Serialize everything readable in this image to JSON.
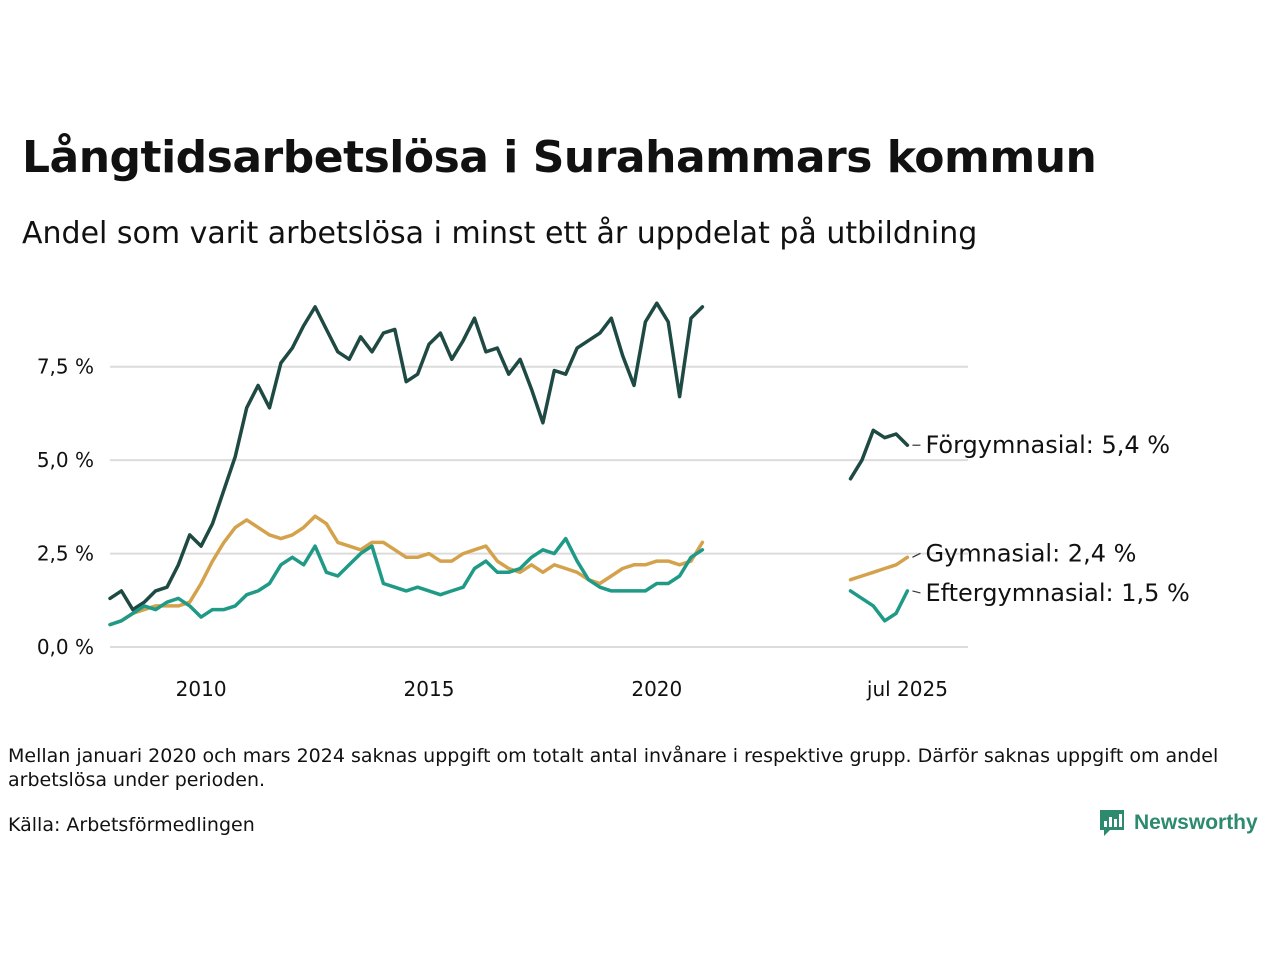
{
  "chart_data": {
    "type": "line",
    "title": "Långtidsarbetslösa i Surahammars kommun",
    "subtitle": "Andel som varit arbetslösa i minst ett år uppdelat på utbildning",
    "xlabel": "",
    "ylabel": "",
    "x_ticks": [
      {
        "x": 2010,
        "label": "2010"
      },
      {
        "x": 2015,
        "label": "2015"
      },
      {
        "x": 2020,
        "label": "2020"
      },
      {
        "x": 2025.5,
        "label": "jul 2025"
      }
    ],
    "y_ticks": [
      {
        "y": 0,
        "label": "0,0 %"
      },
      {
        "y": 2.5,
        "label": "2,5 %"
      },
      {
        "y": 5.0,
        "label": "5,0 %"
      },
      {
        "y": 7.5,
        "label": "7,5 %"
      }
    ],
    "xlim": [
      2008.0,
      2025.6
    ],
    "ylim": [
      0,
      9.5
    ],
    "grid": "horizontal",
    "legend": "direct labels at line ends, right",
    "series": [
      {
        "name": "Förgymnasial",
        "label": "Förgymnasial: 5,4 %",
        "color": "#1f4a43",
        "segments": [
          [
            [
              2008.0,
              1.3
            ],
            [
              2008.25,
              1.5
            ],
            [
              2008.5,
              1.0
            ],
            [
              2008.75,
              1.2
            ],
            [
              2009.0,
              1.5
            ],
            [
              2009.25,
              1.6
            ],
            [
              2009.5,
              2.2
            ],
            [
              2009.75,
              3.0
            ],
            [
              2010.0,
              2.7
            ],
            [
              2010.25,
              3.3
            ],
            [
              2010.5,
              4.2
            ],
            [
              2010.75,
              5.1
            ],
            [
              2011.0,
              6.4
            ],
            [
              2011.25,
              7.0
            ],
            [
              2011.5,
              6.4
            ],
            [
              2011.75,
              7.6
            ],
            [
              2012.0,
              8.0
            ],
            [
              2012.25,
              8.6
            ],
            [
              2012.5,
              9.1
            ],
            [
              2012.75,
              8.5
            ],
            [
              2013.0,
              7.9
            ],
            [
              2013.25,
              7.7
            ],
            [
              2013.5,
              8.3
            ],
            [
              2013.75,
              7.9
            ],
            [
              2014.0,
              8.4
            ],
            [
              2014.25,
              8.5
            ],
            [
              2014.5,
              7.1
            ],
            [
              2014.75,
              7.3
            ],
            [
              2015.0,
              8.1
            ],
            [
              2015.25,
              8.4
            ],
            [
              2015.5,
              7.7
            ],
            [
              2015.75,
              8.2
            ],
            [
              2016.0,
              8.8
            ],
            [
              2016.25,
              7.9
            ],
            [
              2016.5,
              8.0
            ],
            [
              2016.75,
              7.3
            ],
            [
              2017.0,
              7.7
            ],
            [
              2017.25,
              6.9
            ],
            [
              2017.5,
              6.0
            ],
            [
              2017.75,
              7.4
            ],
            [
              2018.0,
              7.3
            ],
            [
              2018.25,
              8.0
            ],
            [
              2018.5,
              8.2
            ],
            [
              2018.75,
              8.4
            ],
            [
              2019.0,
              8.8
            ],
            [
              2019.25,
              7.8
            ],
            [
              2019.5,
              7.0
            ],
            [
              2019.75,
              8.7
            ],
            [
              2020.0,
              9.2
            ],
            [
              2020.25,
              8.7
            ],
            [
              2020.5,
              6.7
            ],
            [
              2020.75,
              8.8
            ],
            [
              2021.0,
              9.1
            ]
          ],
          [
            [
              2024.25,
              4.5
            ],
            [
              2024.5,
              5.0
            ],
            [
              2024.75,
              5.8
            ],
            [
              2025.0,
              5.6
            ],
            [
              2025.25,
              5.7
            ],
            [
              2025.5,
              5.4
            ]
          ]
        ]
      },
      {
        "name": "Gymnasial",
        "label": "Gymnasial: 2,4 %",
        "color": "#d4a24c",
        "segments": [
          [
            [
              2008.0,
              0.6
            ],
            [
              2008.25,
              0.7
            ],
            [
              2008.5,
              0.9
            ],
            [
              2008.75,
              1.0
            ],
            [
              2009.0,
              1.1
            ],
            [
              2009.25,
              1.1
            ],
            [
              2009.5,
              1.1
            ],
            [
              2009.75,
              1.2
            ],
            [
              2010.0,
              1.7
            ],
            [
              2010.25,
              2.3
            ],
            [
              2010.5,
              2.8
            ],
            [
              2010.75,
              3.2
            ],
            [
              2011.0,
              3.4
            ],
            [
              2011.25,
              3.2
            ],
            [
              2011.5,
              3.0
            ],
            [
              2011.75,
              2.9
            ],
            [
              2012.0,
              3.0
            ],
            [
              2012.25,
              3.2
            ],
            [
              2012.5,
              3.5
            ],
            [
              2012.75,
              3.3
            ],
            [
              2013.0,
              2.8
            ],
            [
              2013.25,
              2.7
            ],
            [
              2013.5,
              2.6
            ],
            [
              2013.75,
              2.8
            ],
            [
              2014.0,
              2.8
            ],
            [
              2014.25,
              2.6
            ],
            [
              2014.5,
              2.4
            ],
            [
              2014.75,
              2.4
            ],
            [
              2015.0,
              2.5
            ],
            [
              2015.25,
              2.3
            ],
            [
              2015.5,
              2.3
            ],
            [
              2015.75,
              2.5
            ],
            [
              2016.0,
              2.6
            ],
            [
              2016.25,
              2.7
            ],
            [
              2016.5,
              2.3
            ],
            [
              2016.75,
              2.1
            ],
            [
              2017.0,
              2.0
            ],
            [
              2017.25,
              2.2
            ],
            [
              2017.5,
              2.0
            ],
            [
              2017.75,
              2.2
            ],
            [
              2018.0,
              2.1
            ],
            [
              2018.25,
              2.0
            ],
            [
              2018.5,
              1.8
            ],
            [
              2018.75,
              1.7
            ],
            [
              2019.0,
              1.9
            ],
            [
              2019.25,
              2.1
            ],
            [
              2019.5,
              2.2
            ],
            [
              2019.75,
              2.2
            ],
            [
              2020.0,
              2.3
            ],
            [
              2020.25,
              2.3
            ],
            [
              2020.5,
              2.2
            ],
            [
              2020.75,
              2.3
            ],
            [
              2021.0,
              2.8
            ]
          ],
          [
            [
              2024.25,
              1.8
            ],
            [
              2024.5,
              1.9
            ],
            [
              2024.75,
              2.0
            ],
            [
              2025.0,
              2.1
            ],
            [
              2025.25,
              2.2
            ],
            [
              2025.5,
              2.4
            ]
          ]
        ]
      },
      {
        "name": "Eftergymnasial",
        "label": "Eftergymnasial: 1,5 %",
        "color": "#1f9a86",
        "segments": [
          [
            [
              2008.0,
              0.6
            ],
            [
              2008.25,
              0.7
            ],
            [
              2008.5,
              0.9
            ],
            [
              2008.75,
              1.1
            ],
            [
              2009.0,
              1.0
            ],
            [
              2009.25,
              1.2
            ],
            [
              2009.5,
              1.3
            ],
            [
              2009.75,
              1.1
            ],
            [
              2010.0,
              0.8
            ],
            [
              2010.25,
              1.0
            ],
            [
              2010.5,
              1.0
            ],
            [
              2010.75,
              1.1
            ],
            [
              2011.0,
              1.4
            ],
            [
              2011.25,
              1.5
            ],
            [
              2011.5,
              1.7
            ],
            [
              2011.75,
              2.2
            ],
            [
              2012.0,
              2.4
            ],
            [
              2012.25,
              2.2
            ],
            [
              2012.5,
              2.7
            ],
            [
              2012.75,
              2.0
            ],
            [
              2013.0,
              1.9
            ],
            [
              2013.25,
              2.2
            ],
            [
              2013.5,
              2.5
            ],
            [
              2013.75,
              2.7
            ],
            [
              2014.0,
              1.7
            ],
            [
              2014.25,
              1.6
            ],
            [
              2014.5,
              1.5
            ],
            [
              2014.75,
              1.6
            ],
            [
              2015.0,
              1.5
            ],
            [
              2015.25,
              1.4
            ],
            [
              2015.5,
              1.5
            ],
            [
              2015.75,
              1.6
            ],
            [
              2016.0,
              2.1
            ],
            [
              2016.25,
              2.3
            ],
            [
              2016.5,
              2.0
            ],
            [
              2016.75,
              2.0
            ],
            [
              2017.0,
              2.1
            ],
            [
              2017.25,
              2.4
            ],
            [
              2017.5,
              2.6
            ],
            [
              2017.75,
              2.5
            ],
            [
              2018.0,
              2.9
            ],
            [
              2018.25,
              2.3
            ],
            [
              2018.5,
              1.8
            ],
            [
              2018.75,
              1.6
            ],
            [
              2019.0,
              1.5
            ],
            [
              2019.25,
              1.5
            ],
            [
              2019.5,
              1.5
            ],
            [
              2019.75,
              1.5
            ],
            [
              2020.0,
              1.7
            ],
            [
              2020.25,
              1.7
            ],
            [
              2020.5,
              1.9
            ],
            [
              2020.75,
              2.4
            ],
            [
              2021.0,
              2.6
            ]
          ],
          [
            [
              2024.25,
              1.5
            ],
            [
              2024.5,
              1.3
            ],
            [
              2024.75,
              1.1
            ],
            [
              2025.0,
              0.7
            ],
            [
              2025.25,
              0.9
            ],
            [
              2025.5,
              1.5
            ]
          ]
        ]
      }
    ]
  },
  "footer": {
    "note": "Mellan januari 2020 och mars 2024 saknas uppgift om totalt antal invånare i respektive grupp. Därför saknas uppgift om andel arbetslösa under perioden.",
    "source": "Källa: Arbetsförmedlingen"
  },
  "logo": {
    "text": "Newsworthy",
    "icon": "bar-chart-icon",
    "color": "#2d8a6f"
  }
}
